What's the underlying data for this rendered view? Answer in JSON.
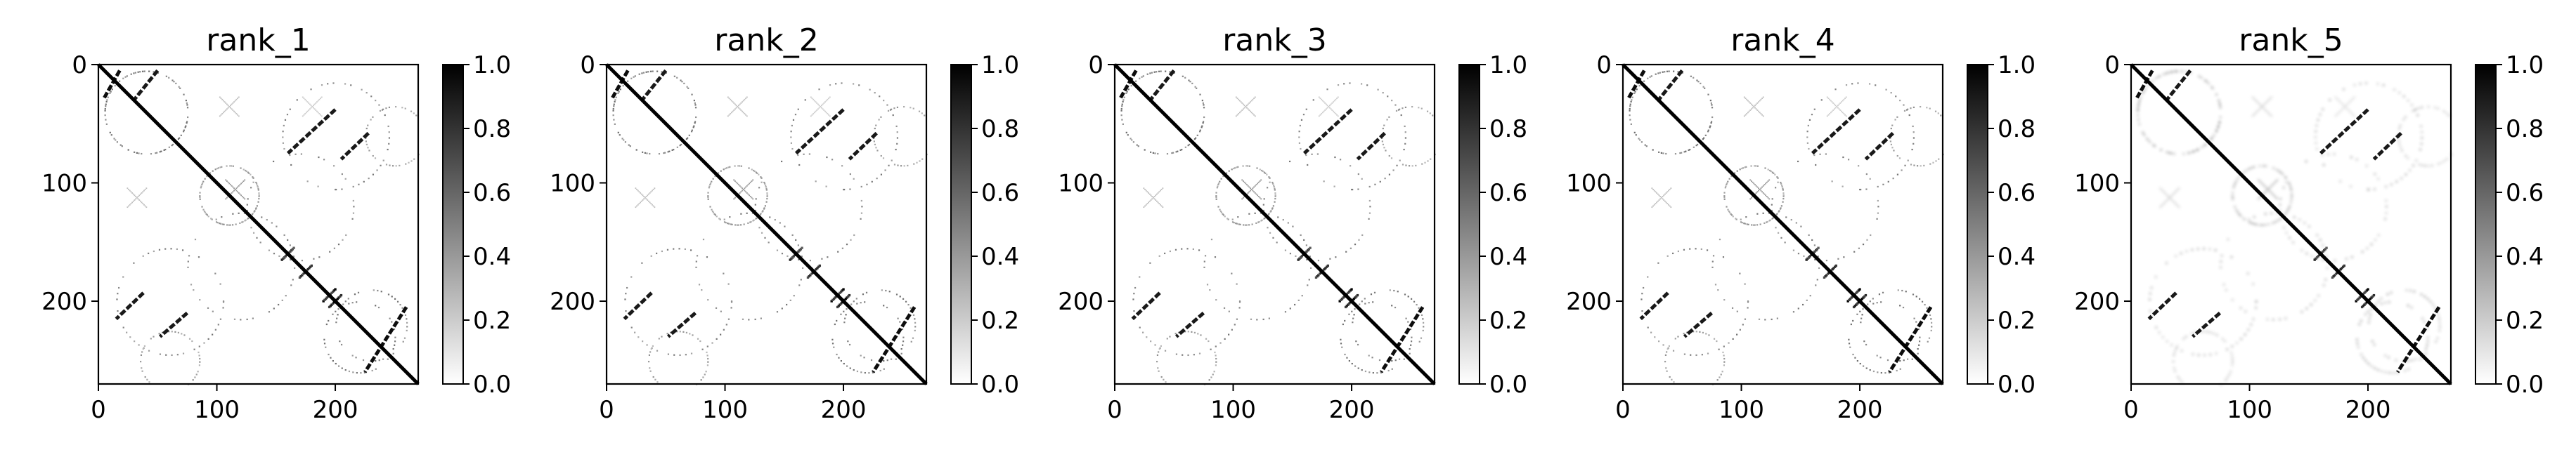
{
  "chart_data": [
    {
      "type": "heatmap",
      "title": "rank_1",
      "n": 270,
      "xlim": [
        0,
        270
      ],
      "ylim": [
        270,
        0
      ],
      "xticks": [
        0,
        100,
        200
      ],
      "yticks": [
        0,
        100,
        200
      ],
      "colorbar": {
        "range": [
          0.0,
          1.0
        ],
        "ticks": [
          "0.0",
          "0.2",
          "0.4",
          "0.6",
          "0.8",
          "1.0"
        ],
        "colormap": "white-to-black"
      },
      "blur": 0.0
    },
    {
      "type": "heatmap",
      "title": "rank_2",
      "n": 270,
      "xlim": [
        0,
        270
      ],
      "ylim": [
        270,
        0
      ],
      "xticks": [
        0,
        100,
        200
      ],
      "yticks": [
        0,
        100,
        200
      ],
      "colorbar": {
        "range": [
          0.0,
          1.0
        ],
        "ticks": [
          "0.0",
          "0.2",
          "0.4",
          "0.6",
          "0.8",
          "1.0"
        ],
        "colormap": "white-to-black"
      },
      "blur": 0.0
    },
    {
      "type": "heatmap",
      "title": "rank_3",
      "n": 270,
      "xlim": [
        0,
        270
      ],
      "ylim": [
        270,
        0
      ],
      "xticks": [
        0,
        100,
        200
      ],
      "yticks": [
        0,
        100,
        200
      ],
      "colorbar": {
        "range": [
          0.0,
          1.0
        ],
        "ticks": [
          "0.0",
          "0.2",
          "0.4",
          "0.6",
          "0.8",
          "1.0"
        ],
        "colormap": "white-to-black"
      },
      "blur": 0.0
    },
    {
      "type": "heatmap",
      "title": "rank_4",
      "n": 270,
      "xlim": [
        0,
        270
      ],
      "ylim": [
        270,
        0
      ],
      "xticks": [
        0,
        100,
        200
      ],
      "yticks": [
        0,
        100,
        200
      ],
      "colorbar": {
        "range": [
          0.0,
          1.0
        ],
        "ticks": [
          "0.0",
          "0.2",
          "0.4",
          "0.6",
          "0.8",
          "1.0"
        ],
        "colormap": "white-to-black"
      },
      "blur": 0.0
    },
    {
      "type": "heatmap",
      "title": "rank_5",
      "n": 270,
      "xlim": [
        0,
        270
      ],
      "ylim": [
        270,
        0
      ],
      "xticks": [
        0,
        100,
        200
      ],
      "yticks": [
        0,
        100,
        200
      ],
      "colorbar": {
        "range": [
          0.0,
          1.0
        ],
        "ticks": [
          "0.0",
          "0.2",
          "0.4",
          "0.6",
          "0.8",
          "1.0"
        ],
        "colormap": "white-to-black"
      },
      "blur": 1.0
    }
  ],
  "features": {
    "diagonal": {
      "from": 0,
      "to": 270,
      "value": 1.0
    },
    "antidiagonal_segments": [
      {
        "x0": 18,
        "y0": 5,
        "x1": 5,
        "y1": 28,
        "value": 0.95
      },
      {
        "x0": 50,
        "y0": 5,
        "x1": 30,
        "y1": 30,
        "value": 0.9
      },
      {
        "x0": 200,
        "y0": 38,
        "x1": 160,
        "y1": 75,
        "value": 0.9
      },
      {
        "x0": 228,
        "y0": 58,
        "x1": 205,
        "y1": 80,
        "value": 0.9
      },
      {
        "x0": 260,
        "y0": 205,
        "x1": 225,
        "y1": 260,
        "value": 0.95
      },
      {
        "x0": 38,
        "y0": 193,
        "x1": 15,
        "y1": 215,
        "value": 0.9
      },
      {
        "x0": 75,
        "y0": 210,
        "x1": 52,
        "y1": 230,
        "value": 0.9
      }
    ],
    "dotted_arcs": [
      {
        "cx": 40,
        "cy": 40,
        "r": 35,
        "value": 0.6
      },
      {
        "cx": 170,
        "cy": 120,
        "r": 45,
        "value": 0.55
      },
      {
        "cx": 60,
        "cy": 200,
        "r": 45,
        "value": 0.55
      },
      {
        "cx": 220,
        "cy": 230,
        "r": 30,
        "value": 0.6
      },
      {
        "cx": 110,
        "cy": 110,
        "r": 25,
        "value": 0.45
      },
      {
        "cx": 250,
        "cy": 60,
        "r": 25,
        "value": 0.45
      }
    ],
    "x_motifs": [
      {
        "cx": 110,
        "cy": 35,
        "value": 0.25
      },
      {
        "cx": 32,
        "cy": 112,
        "value": 0.25
      },
      {
        "cx": 180,
        "cy": 35,
        "value": 0.2
      },
      {
        "cx": 115,
        "cy": 105,
        "value": 0.4
      }
    ],
    "diag_clusters": [
      {
        "c": 160,
        "value": 0.9
      },
      {
        "c": 175,
        "value": 0.9
      },
      {
        "c": 195,
        "value": 1.0
      },
      {
        "c": 200,
        "value": 1.0
      }
    ]
  }
}
